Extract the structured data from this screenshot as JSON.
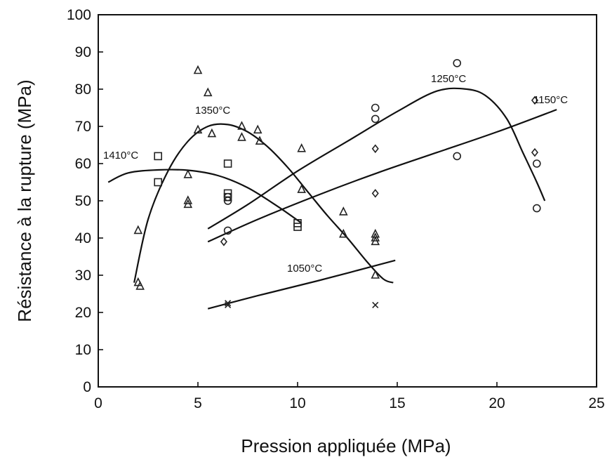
{
  "chart_data": {
    "type": "scatter",
    "title": "",
    "xlabel": "Pression appliquée (MPa)",
    "ylabel": "Résistance à la rupture (MPa)",
    "xlim": [
      0,
      25
    ],
    "ylim": [
      0,
      100
    ],
    "x_ticks": [
      0,
      5,
      10,
      15,
      20,
      25
    ],
    "y_ticks": [
      0,
      10,
      20,
      30,
      40,
      50,
      60,
      70,
      80,
      90,
      100
    ],
    "grid": false,
    "legend": "none",
    "series": [
      {
        "name": "1410°C",
        "marker": "square",
        "points": [
          [
            3,
            62
          ],
          [
            3,
            55
          ],
          [
            6.5,
            60
          ],
          [
            6.5,
            52
          ],
          [
            6.5,
            51
          ],
          [
            10,
            44
          ],
          [
            10,
            43
          ]
        ],
        "fit": [
          [
            0.5,
            55
          ],
          [
            1.5,
            57.5
          ],
          [
            3,
            58.3
          ],
          [
            4.5,
            58.2
          ],
          [
            6,
            56.8
          ],
          [
            7.5,
            53.5
          ],
          [
            9,
            48.5
          ],
          [
            10.2,
            44
          ]
        ]
      },
      {
        "name": "1350°C",
        "marker": "triangle",
        "points": [
          [
            2,
            42
          ],
          [
            2,
            28
          ],
          [
            2.1,
            27
          ],
          [
            4.5,
            57
          ],
          [
            4.5,
            50
          ],
          [
            4.5,
            49
          ],
          [
            5,
            85
          ],
          [
            5,
            69
          ],
          [
            5.5,
            79
          ],
          [
            5.7,
            68
          ],
          [
            7.2,
            70
          ],
          [
            7.2,
            67
          ],
          [
            8,
            69
          ],
          [
            8.1,
            66
          ],
          [
            10.2,
            64
          ],
          [
            10.2,
            53
          ],
          [
            12.3,
            47
          ],
          [
            12.3,
            41
          ],
          [
            13.9,
            41
          ],
          [
            13.9,
            40
          ],
          [
            13.9,
            39
          ],
          [
            13.9,
            30
          ]
        ],
        "fit": [
          [
            1.8,
            28
          ],
          [
            2.5,
            45
          ],
          [
            3.5,
            58
          ],
          [
            4.5,
            66
          ],
          [
            5.5,
            70
          ],
          [
            6.5,
            70.5
          ],
          [
            7.5,
            68.5
          ],
          [
            8.5,
            64.5
          ],
          [
            9.5,
            59
          ],
          [
            10.5,
            52.5
          ],
          [
            11.5,
            46
          ],
          [
            12.5,
            40
          ],
          [
            13.5,
            33.5
          ],
          [
            14.3,
            29
          ],
          [
            14.8,
            28
          ]
        ]
      },
      {
        "name": "1250°C",
        "marker": "circle",
        "points": [
          [
            6.5,
            42
          ],
          [
            6.5,
            50
          ],
          [
            6.5,
            51
          ],
          [
            13.9,
            75
          ],
          [
            13.9,
            72
          ],
          [
            18,
            87
          ],
          [
            18,
            62
          ],
          [
            22,
            60
          ],
          [
            22,
            48
          ]
        ],
        "fit": [
          [
            5.5,
            42.5
          ],
          [
            7.5,
            49
          ],
          [
            10,
            58
          ],
          [
            12.5,
            66
          ],
          [
            15,
            74
          ],
          [
            17,
            79.5
          ],
          [
            18.5,
            80
          ],
          [
            19.5,
            78
          ],
          [
            20.5,
            72
          ],
          [
            21.3,
            63
          ],
          [
            22,
            55
          ],
          [
            22.4,
            50
          ]
        ]
      },
      {
        "name": "1150°C",
        "marker": "diamond",
        "points": [
          [
            6.3,
            39
          ],
          [
            13.9,
            64
          ],
          [
            13.9,
            52
          ],
          [
            21.9,
            77
          ],
          [
            21.9,
            63
          ]
        ],
        "fit": [
          [
            5.5,
            39
          ],
          [
            8,
            45
          ],
          [
            11,
            51.5
          ],
          [
            14,
            57.5
          ],
          [
            17,
            63
          ],
          [
            20,
            68.5
          ],
          [
            23,
            74.5
          ]
        ]
      },
      {
        "name": "1050°C",
        "marker": "cross",
        "points": [
          [
            6.5,
            22.5
          ],
          [
            6.5,
            22
          ],
          [
            13.9,
            22
          ]
        ],
        "fit": [
          [
            5.5,
            21
          ],
          [
            8,
            24.5
          ],
          [
            11,
            28.5
          ],
          [
            14.9,
            34
          ]
        ]
      }
    ],
    "annotations": [
      "1410°C",
      "1350°C",
      "1250°C",
      "1150°C",
      "1050°C"
    ]
  }
}
